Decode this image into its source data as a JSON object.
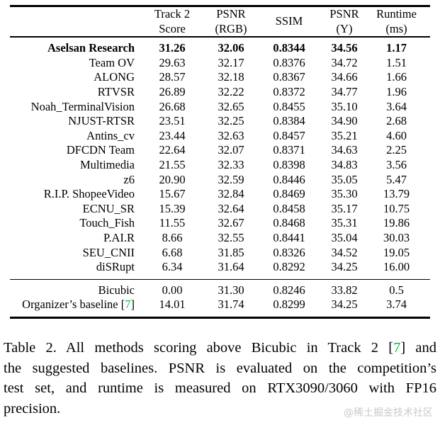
{
  "page": {
    "watermark": "@稀土掘金技术社区",
    "colors": {
      "text": "#000000",
      "cite_green": "#00c332",
      "watermark_gray": "#c9c9c9",
      "background": "#ffffff"
    }
  },
  "table": {
    "columns": [
      {
        "lines": []
      },
      {
        "lines": [
          "Track 2",
          "Score"
        ]
      },
      {
        "lines": [
          "PSNR",
          "(RGB)"
        ]
      },
      {
        "lines": [
          "SSIM"
        ]
      },
      {
        "lines": [
          "PSNR",
          "(Y)"
        ]
      },
      {
        "lines": [
          "Runtime",
          "(ms)"
        ]
      }
    ],
    "rows": [
      {
        "name": "Aselsan Research",
        "bold": true,
        "values": [
          "31.26",
          "32.06",
          "0.8344",
          "34.56",
          "1.17"
        ]
      },
      {
        "name": "Team OV",
        "values": [
          "29.63",
          "32.17",
          "0.8376",
          "34.72",
          "1.51"
        ]
      },
      {
        "name": "ALONG",
        "values": [
          "28.57",
          "32.18",
          "0.8367",
          "34.66",
          "1.66"
        ]
      },
      {
        "name": "RTVSR",
        "values": [
          "26.89",
          "32.22",
          "0.8372",
          "34.77",
          "1.96"
        ]
      },
      {
        "name": "Noah_TerminalVision",
        "values": [
          "26.68",
          "32.65",
          "0.8455",
          "35.10",
          "3.64"
        ]
      },
      {
        "name": "NJUST-RTSR",
        "values": [
          "23.51",
          "32.25",
          "0.8384",
          "34.90",
          "2.68"
        ]
      },
      {
        "name": "Antins_cv",
        "values": [
          "23.44",
          "32.63",
          "0.8457",
          "35.21",
          "4.60"
        ]
      },
      {
        "name": "DFCDN Team",
        "values": [
          "22.64",
          "32.07",
          "0.8371",
          "34.63",
          "2.25"
        ]
      },
      {
        "name": "Multimedia",
        "values": [
          "21.55",
          "32.33",
          "0.8398",
          "34.83",
          "3.56"
        ]
      },
      {
        "name": "z6",
        "values": [
          "20.90",
          "32.59",
          "0.8446",
          "35.05",
          "5.47"
        ]
      },
      {
        "name": "R.I.P. ShopeeVideo",
        "values": [
          "15.67",
          "32.84",
          "0.8469",
          "35.30",
          "13.79"
        ]
      },
      {
        "name": "ECNU_SR",
        "values": [
          "15.39",
          "32.64",
          "0.8458",
          "35.17",
          "10.75"
        ]
      },
      {
        "name": "Touch_Fish",
        "values": [
          "11.55",
          "32.67",
          "0.8468",
          "35.31",
          "19.86"
        ]
      },
      {
        "name": "P.AI.R",
        "values": [
          "8.66",
          "32.55",
          "0.8441",
          "35.04",
          "30.03"
        ]
      },
      {
        "name": "SEU_CNII",
        "values": [
          "6.68",
          "31.85",
          "0.8326",
          "34.52",
          "19.05"
        ]
      },
      {
        "name": "diSRupt",
        "values": [
          "6.34",
          "31.64",
          "0.8292",
          "34.25",
          "16.00"
        ]
      }
    ],
    "baseline_rows": [
      {
        "name": "Bicubic",
        "values": [
          "0.00",
          "31.30",
          "0.8246",
          "33.82",
          "0.5"
        ]
      },
      {
        "name": "Organizer’s baseline [7]",
        "values": [
          "14.01",
          "31.74",
          "0.8299",
          "34.25",
          "3.74"
        ]
      }
    ]
  },
  "caption": {
    "lines": [
      "Table 2.  All methods scoring above Bicubic in Track 2 [7] and",
      "the suggested baselines. PSNR is evaluated on the competition’s",
      "test set, and runtime is measured on RTX3090/3060 with FP16",
      "precision."
    ]
  }
}
